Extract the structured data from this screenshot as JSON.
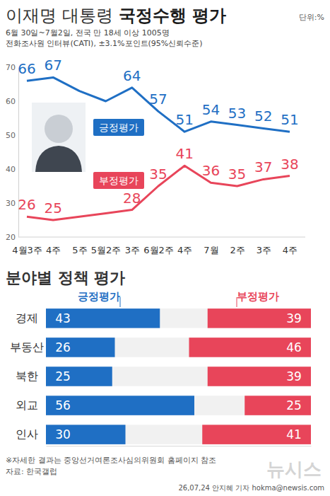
{
  "header": {
    "title": "이재명 대통령 국정수행 평가",
    "unit": "단위:%",
    "subtitle": [
      "6월 30일~7월2일, 전국 만 18세 이상 1005명",
      "전화조사원 인터뷰(CATI), ±3.1%포인트(95%신뢰수준)"
    ]
  },
  "chart_data": [
    {
      "type": "line",
      "categories": [
        "4월3주",
        "4주",
        "5주",
        "5월2주",
        "3주",
        "6월2주",
        "4주",
        "7월",
        "2주",
        "3주",
        "4주"
      ],
      "ylim": [
        20,
        70
      ],
      "yticks": [
        20,
        30,
        40,
        50,
        60,
        70
      ],
      "grid": false,
      "data_labels": true,
      "marker": "none",
      "series": [
        {
          "name": "긍정평가",
          "color": "#1f6fc4",
          "values": [
            66,
            67,
            63,
            60,
            64,
            57,
            51,
            54,
            53,
            52,
            51
          ],
          "value_labels": [
            "66",
            "67",
            null,
            null,
            "64",
            "57",
            "51",
            "54",
            "53",
            "52",
            "51"
          ]
        },
        {
          "name": "부정평가",
          "color": "#e8455a",
          "values": [
            26,
            25,
            26,
            27,
            28,
            35,
            41,
            36,
            35,
            37,
            38
          ],
          "value_labels": [
            "26",
            "25",
            null,
            null,
            "28",
            "35",
            "41",
            "36",
            "35",
            "37",
            "38"
          ]
        }
      ]
    },
    {
      "type": "bar",
      "title": "분야별 정책 평가",
      "orientation": "horizontal",
      "stacked": false,
      "data_labels": true,
      "tick_labels": "y",
      "legend": "top",
      "categories": [
        "경제",
        "부동산",
        "북한",
        "외교",
        "인사"
      ],
      "xlim": [
        0,
        100
      ],
      "series": [
        {
          "name": "긍정평가",
          "color": "#1f6fc4",
          "values": [
            43,
            26,
            25,
            56,
            30
          ]
        },
        {
          "name": "부정평가",
          "color": "#e8455a",
          "values": [
            39,
            46,
            39,
            25,
            41
          ]
        }
      ]
    }
  ],
  "footer": {
    "note": "※자세한 결과는 중앙선거여론조사심의위원회 홈페이지 참조",
    "source": "자료: 한국갤럽",
    "byline": "26,07,24 안지혜 기자 hokma@newsis.com",
    "watermark": "뉴시스"
  }
}
